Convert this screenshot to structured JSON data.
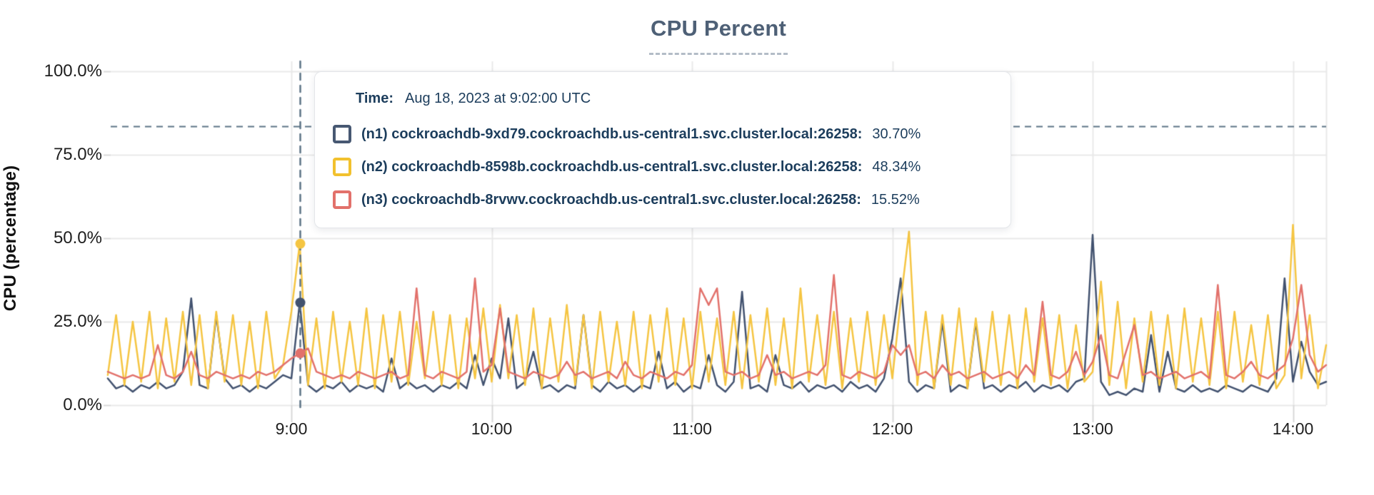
{
  "title": "CPU Percent",
  "y_axis": {
    "label": "CPU (percentage)",
    "ticks": [
      "100.0%",
      "75.0%",
      "50.0%",
      "25.0%",
      "0.0%"
    ],
    "tick_percents": [
      100,
      75,
      50,
      25,
      0
    ]
  },
  "x_axis": {
    "ticks": [
      "9:00",
      "10:00",
      "11:00",
      "12:00",
      "13:00",
      "14:00"
    ]
  },
  "tooltip": {
    "time_label": "Time:",
    "time_value": "Aug 18, 2023 at 9:02:00 UTC",
    "rows": [
      {
        "label": "(n1) cockroachdb-9xd79.cockroachdb.us-central1.svc.cluster.local:26258:",
        "value": "30.70%",
        "color": "#475872"
      },
      {
        "label": "(n2) cockroachdb-8598b.cockroachdb.us-central1.svc.cluster.local:26258:",
        "value": "48.34%",
        "color": "#f2c12e"
      },
      {
        "label": "(n3) cockroachdb-8rvwv.cockroachdb.us-central1.svc.cluster.local:26258:",
        "value": "15.52%",
        "color": "#e2716b"
      }
    ]
  },
  "colors": {
    "title": "#4e6076",
    "grid": "#e9e9e9",
    "tick_mark": "#d9d9d9",
    "crosshair": "#5d7486",
    "series_n1": "#42526f",
    "series_n2": "#f5c542",
    "series_n3": "#e2716b",
    "tooltip_text": "#1c3d5c"
  },
  "hover": {
    "time": "Aug 18, 2023 at 9:02:00 UTC",
    "minutes_after_start": 57.5,
    "crosshair_percent": 83.5,
    "dot_values": [
      30.7,
      48.34,
      15.52
    ]
  },
  "chart_data": {
    "type": "line",
    "title": "CPU Percent",
    "xlabel": "",
    "ylabel": "CPU (percentage)",
    "ylim": [
      0,
      100
    ],
    "grid": true,
    "legend_position": "tooltip-overlay",
    "x_window": [
      "8:05",
      "14:10"
    ],
    "x_hour_ticks": [
      "9:00",
      "10:00",
      "11:00",
      "12:00",
      "13:00",
      "14:00"
    ],
    "x_start_minute": 0,
    "x_step_minutes": 2.5,
    "first_tick_minute": 55,
    "minutes_per_tick": 60,
    "series": [
      {
        "name": "(n1) cockroachdb-9xd79.cockroachdb.us-central1.svc.cluster.local:26258",
        "color": "#42526f",
        "values": [
          8,
          5,
          6,
          4,
          6,
          5,
          7,
          5,
          6,
          10,
          32,
          6,
          5,
          27,
          8,
          5,
          6,
          4,
          6,
          5,
          7,
          9,
          8,
          30.7,
          6,
          4,
          6,
          5,
          7,
          4,
          6,
          5,
          6,
          4,
          14,
          5,
          7,
          5,
          6,
          4,
          6,
          5,
          7,
          5,
          15,
          6,
          14,
          8,
          26,
          5,
          7,
          16,
          5,
          6,
          4,
          6,
          5,
          27,
          6,
          4,
          7,
          5,
          6,
          4,
          6,
          5,
          16,
          5,
          7,
          4,
          6,
          5,
          15,
          6,
          4,
          7,
          34,
          5,
          6,
          4,
          15,
          6,
          5,
          7,
          4,
          6,
          5,
          6,
          4,
          7,
          5,
          6,
          4,
          8,
          20,
          38,
          7,
          4,
          6,
          5,
          25,
          4,
          6,
          5,
          25,
          5,
          6,
          4,
          6,
          5,
          7,
          4,
          6,
          5,
          6,
          4,
          7,
          8,
          51,
          7,
          3,
          4,
          3,
          5,
          4,
          21,
          4,
          16,
          5,
          4,
          6,
          4,
          5,
          4,
          6,
          5,
          4,
          6,
          5,
          4,
          8,
          38,
          7,
          19,
          10,
          6,
          7
        ]
      },
      {
        "name": "(n2) cockroachdb-8598b.cockroachdb.us-central1.svc.cluster.local:26258",
        "color": "#f5c542",
        "values": [
          9,
          27,
          6,
          25,
          7,
          28,
          5,
          26,
          7,
          28,
          6,
          27,
          5,
          28,
          7,
          27,
          6,
          25,
          5,
          28,
          8,
          12,
          28,
          48.34,
          6,
          26,
          5,
          28,
          7,
          25,
          6,
          29,
          5,
          27,
          7,
          28,
          6,
          25,
          8,
          28,
          6,
          27,
          5,
          26,
          8,
          29,
          7,
          30,
          8,
          27,
          6,
          29,
          5,
          26,
          7,
          30,
          6,
          27,
          5,
          28,
          7,
          25,
          6,
          28,
          5,
          27,
          7,
          29,
          6,
          26,
          5,
          28,
          7,
          26,
          6,
          28,
          5,
          27,
          7,
          29,
          6,
          26,
          5,
          35,
          7,
          27,
          6,
          28,
          5,
          26,
          7,
          28,
          6,
          27,
          8,
          31,
          52,
          6,
          28,
          5,
          27,
          6,
          29,
          5,
          26,
          7,
          28,
          6,
          27,
          5,
          29,
          7,
          26,
          6,
          27,
          5,
          24,
          7,
          10,
          37,
          6,
          31,
          5,
          26,
          7,
          28,
          6,
          27,
          5,
          29,
          7,
          26,
          6,
          28,
          5,
          28,
          7,
          24,
          6,
          27,
          5,
          9,
          54,
          8,
          27,
          5,
          18
        ]
      },
      {
        "name": "(n3) cockroachdb-8rvwv.cockroachdb.us-central1.svc.cluster.local:26258",
        "color": "#e2716b",
        "values": [
          10,
          9,
          8,
          9,
          8,
          9,
          18,
          9,
          8,
          10,
          16,
          9,
          8,
          10,
          9,
          8,
          9,
          8,
          10,
          9,
          10,
          12,
          14,
          15.52,
          17,
          10,
          9,
          8,
          9,
          8,
          10,
          9,
          8,
          9,
          10,
          8,
          9,
          35,
          9,
          8,
          10,
          9,
          8,
          10,
          38,
          10,
          12,
          29,
          10,
          9,
          8,
          10,
          9,
          8,
          9,
          13,
          9,
          10,
          8,
          9,
          10,
          8,
          13,
          9,
          8,
          10,
          9,
          8,
          10,
          9,
          12,
          35,
          30,
          35,
          10,
          9,
          10,
          8,
          9,
          15,
          9,
          10,
          8,
          9,
          10,
          9,
          12,
          39,
          9,
          8,
          10,
          9,
          8,
          10,
          18,
          15,
          18,
          9,
          10,
          8,
          12,
          9,
          10,
          8,
          9,
          10,
          8,
          9,
          10,
          8,
          12,
          9,
          31,
          9,
          8,
          10,
          16,
          9,
          13,
          21,
          9,
          8,
          16,
          24,
          9,
          10,
          8,
          9,
          10,
          8,
          9,
          10,
          8,
          36,
          9,
          8,
          10,
          13,
          9,
          8,
          10,
          12,
          20,
          36,
          15,
          10,
          12
        ]
      }
    ],
    "hover_point": {
      "time": "Aug 18, 2023 at 9:02:00 UTC",
      "values": {
        "n1": 30.7,
        "n2": 48.34,
        "n3": 15.52
      }
    }
  }
}
